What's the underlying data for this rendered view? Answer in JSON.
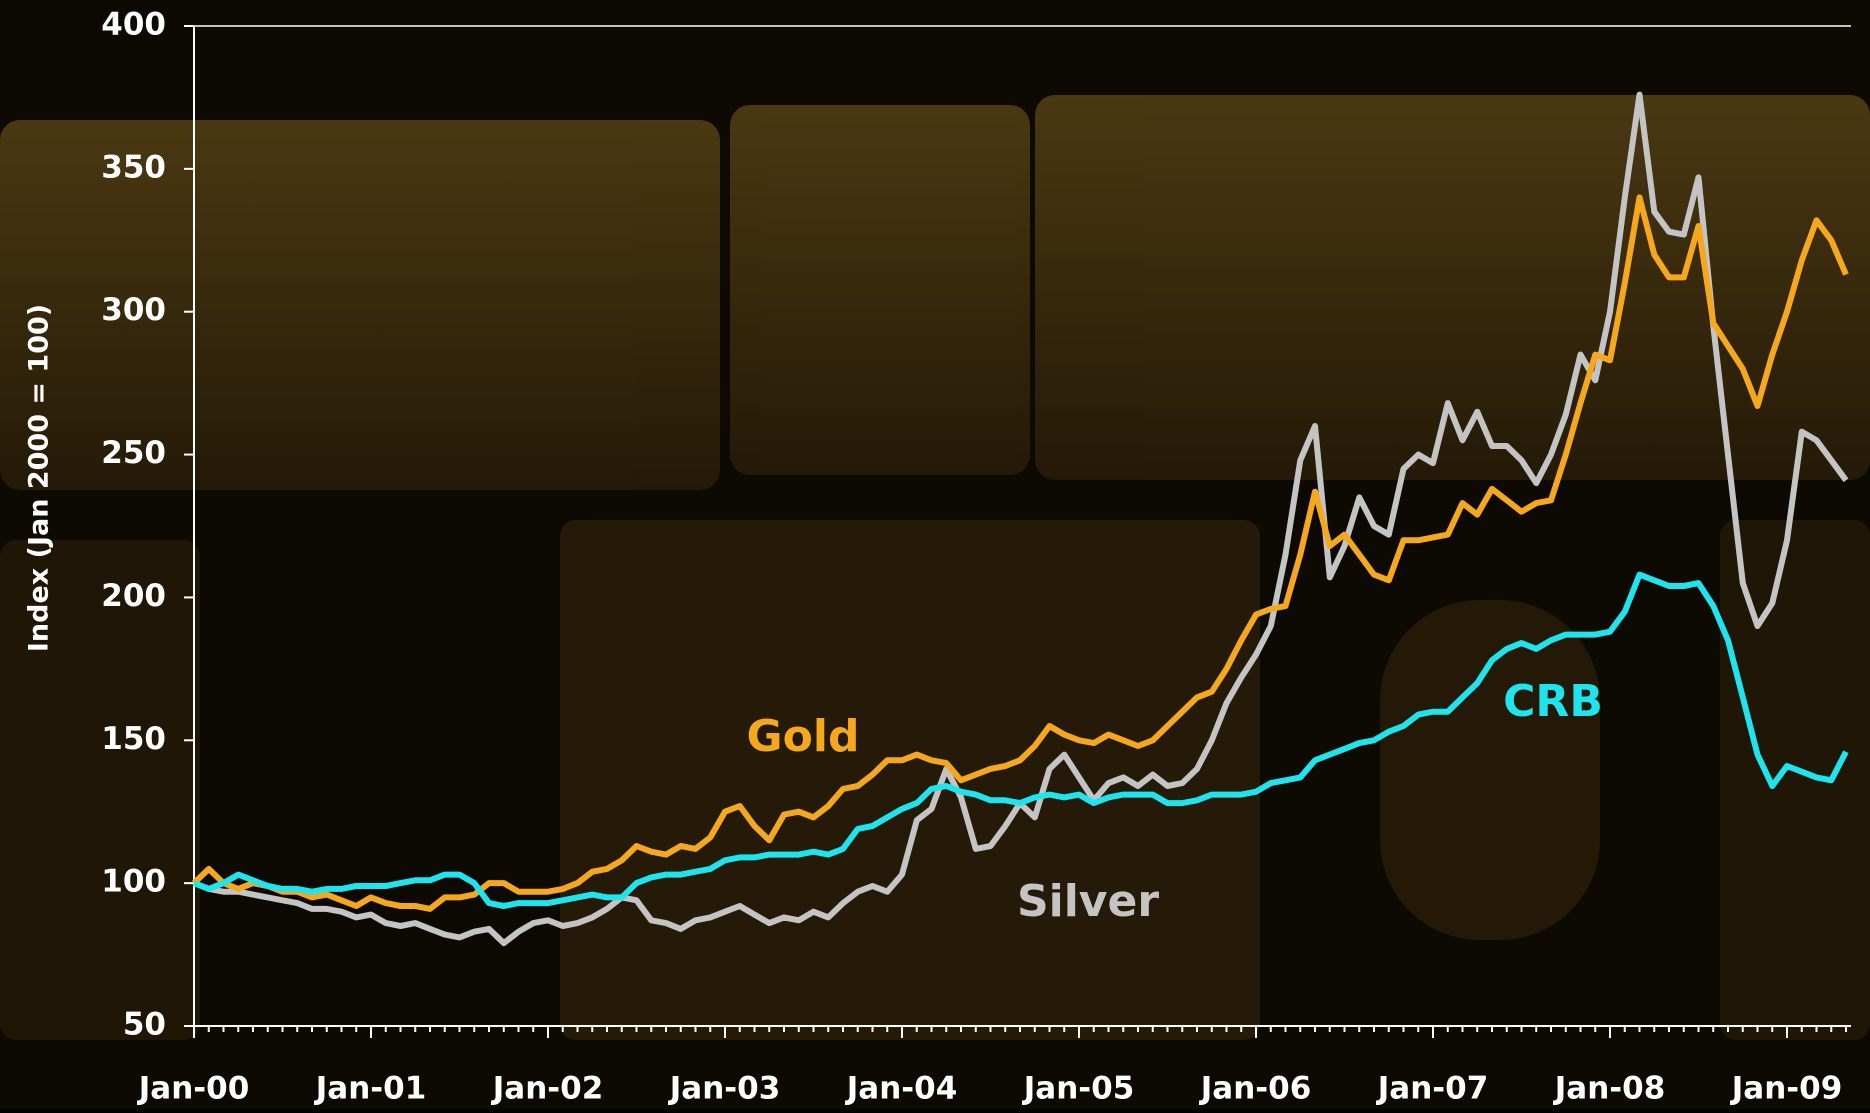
{
  "chart_data": {
    "type": "line",
    "ylabel": "Index (Jan 2000 = 100)",
    "categories": [
      "Jan-00",
      null,
      null,
      null,
      null,
      null,
      null,
      null,
      null,
      null,
      null,
      null,
      "Jan-01",
      null,
      null,
      null,
      null,
      null,
      null,
      null,
      null,
      null,
      null,
      null,
      "Jan-02",
      null,
      null,
      null,
      null,
      null,
      null,
      null,
      null,
      null,
      null,
      null,
      "Jan-03",
      null,
      null,
      null,
      null,
      null,
      null,
      null,
      null,
      null,
      null,
      null,
      "Jan-04",
      null,
      null,
      null,
      null,
      null,
      null,
      null,
      null,
      null,
      null,
      null,
      "Jan-05",
      null,
      null,
      null,
      null,
      null,
      null,
      null,
      null,
      null,
      null,
      null,
      "Jan-06",
      null,
      null,
      null,
      null,
      null,
      null,
      null,
      null,
      null,
      null,
      null,
      "Jan-07",
      null,
      null,
      null,
      null,
      null,
      null,
      null,
      null,
      null,
      null,
      null,
      "Jan-08",
      null,
      null,
      null,
      null,
      null,
      null,
      null,
      null,
      null,
      null,
      null,
      "Jan-09",
      null,
      null,
      null,
      null
    ],
    "series": [
      {
        "name": "Gold",
        "color": "#f5a81c",
        "values": [
          100,
          105,
          100,
          98,
          100,
          99,
          97,
          97,
          95,
          96,
          94,
          92,
          95,
          93,
          92,
          92,
          91,
          95,
          95,
          96,
          100,
          100,
          97,
          97,
          97,
          98,
          100,
          104,
          105,
          108,
          113,
          111,
          110,
          113,
          112,
          116,
          125,
          127,
          120,
          115,
          124,
          125,
          123,
          127,
          133,
          134,
          138,
          143,
          143,
          145,
          143,
          142,
          136,
          138,
          140,
          141,
          143,
          148,
          155,
          152,
          150,
          149,
          152,
          150,
          148,
          150,
          155,
          160,
          165,
          167,
          175,
          185,
          194,
          196,
          197,
          215,
          237,
          218,
          222,
          215,
          208,
          206,
          220,
          220,
          221,
          222,
          233,
          229,
          238,
          234,
          230,
          233,
          234,
          250,
          268,
          285,
          283,
          310,
          340,
          320,
          312,
          312,
          330,
          296,
          288,
          280,
          267,
          285,
          300,
          318,
          332,
          325,
          313
        ]
      },
      {
        "name": "Silver",
        "color": "#c4c4c4",
        "values": [
          100,
          98,
          97,
          97,
          96,
          95,
          94,
          93,
          91,
          91,
          90,
          88,
          89,
          86,
          85,
          86,
          84,
          82,
          81,
          83,
          84,
          79,
          83,
          86,
          87,
          85,
          86,
          88,
          91,
          95,
          94,
          87,
          86,
          84,
          87,
          88,
          90,
          92,
          89,
          86,
          88,
          87,
          90,
          88,
          93,
          97,
          99,
          97,
          103,
          122,
          126,
          140,
          130,
          112,
          113,
          120,
          128,
          123,
          140,
          145,
          137,
          129,
          135,
          137,
          134,
          138,
          134,
          135,
          140,
          150,
          163,
          172,
          180,
          190,
          215,
          248,
          260,
          207,
          218,
          235,
          225,
          222,
          245,
          250,
          247,
          268,
          255,
          265,
          253,
          253,
          248,
          240,
          250,
          264,
          285,
          276,
          300,
          340,
          376,
          335,
          328,
          327,
          347,
          295,
          250,
          205,
          190,
          198,
          220,
          258,
          255,
          248,
          241
        ]
      },
      {
        "name": "CRB",
        "color": "#1ee4ee",
        "values": [
          100,
          98,
          100,
          103,
          101,
          99,
          98,
          98,
          97,
          98,
          98,
          99,
          99,
          99,
          100,
          101,
          101,
          103,
          103,
          100,
          93,
          92,
          93,
          93,
          93,
          94,
          95,
          96,
          95,
          95,
          100,
          102,
          103,
          103,
          104,
          105,
          108,
          109,
          109,
          110,
          110,
          110,
          111,
          110,
          112,
          119,
          120,
          123,
          126,
          128,
          133,
          134,
          132,
          131,
          129,
          129,
          128,
          130,
          131,
          130,
          131,
          128,
          130,
          131,
          131,
          131,
          128,
          128,
          129,
          131,
          131,
          131,
          132,
          135,
          136,
          137,
          143,
          145,
          147,
          149,
          150,
          153,
          155,
          159,
          160,
          160,
          165,
          170,
          178,
          182,
          184,
          182,
          185,
          187,
          187,
          187,
          188,
          195,
          208,
          206,
          204,
          204,
          205,
          197,
          185,
          165,
          145,
          134,
          141,
          139,
          137,
          136,
          146
        ]
      }
    ],
    "ylim": [
      50,
      400
    ],
    "yticks": [
      50,
      100,
      150,
      200,
      250,
      300,
      350,
      400
    ],
    "grid": false
  }
}
